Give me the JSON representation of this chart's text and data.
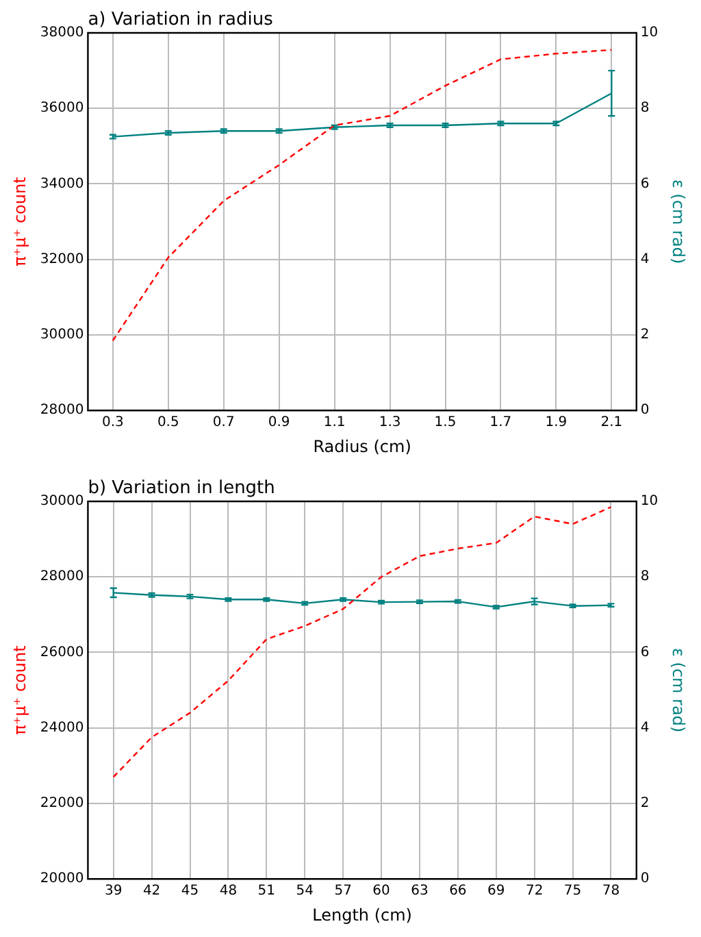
{
  "chart_data": [
    {
      "type": "line",
      "title": "a) Variation in radius",
      "xlabel": "Radius (cm)",
      "ylabel": "π⁺μ⁺ count",
      "y2label": "ε (cm rad)",
      "x": [
        0.3,
        0.5,
        0.7,
        0.9,
        1.1,
        1.3,
        1.5,
        1.7,
        1.9,
        2.1
      ],
      "xlim": [
        0.21,
        2.19
      ],
      "xticks": [
        0.3,
        0.5,
        0.7,
        0.9,
        1.1,
        1.3,
        1.5,
        1.7,
        1.9,
        2.1
      ],
      "ylim": [
        28000,
        38000
      ],
      "yticks": [
        28000,
        30000,
        32000,
        34000,
        36000,
        38000
      ],
      "y2lim": [
        0,
        10
      ],
      "y2ticks": [
        0,
        2,
        4,
        6,
        8,
        10
      ],
      "grid": true,
      "legend": false,
      "series": [
        {
          "color": "#ff0000",
          "line_style": "dashed",
          "values": [
            29850,
            32050,
            33550,
            34500,
            35550,
            35800,
            36600,
            37300,
            37450,
            37550
          ]
        },
        {
          "color": "#008080",
          "line_style": "solid",
          "axis": "y2",
          "values": [
            7.25,
            7.35,
            7.4,
            7.4,
            7.5,
            7.55,
            7.55,
            7.6,
            7.6,
            8.4
          ],
          "errors": [
            0.05,
            0.05,
            0.05,
            0.05,
            0.05,
            0.05,
            0.05,
            0.05,
            0.05,
            0.6
          ]
        }
      ]
    },
    {
      "type": "line",
      "title": "b) Variation in length",
      "xlabel": "Length (cm)",
      "ylabel": "π⁺μ⁺ count",
      "y2label": "ε (cm rad)",
      "x": [
        39,
        42,
        45,
        48,
        51,
        54,
        57,
        60,
        63,
        66,
        69,
        72,
        75,
        78
      ],
      "xlim": [
        37,
        80
      ],
      "xticks": [
        39,
        42,
        45,
        48,
        51,
        54,
        57,
        60,
        63,
        66,
        69,
        72,
        75,
        78
      ],
      "ylim": [
        20000,
        30000
      ],
      "yticks": [
        20000,
        22000,
        24000,
        26000,
        28000,
        30000
      ],
      "y2lim": [
        0,
        10
      ],
      "y2ticks": [
        0,
        2,
        4,
        6,
        8,
        10
      ],
      "grid": true,
      "legend": false,
      "series": [
        {
          "color": "#ff0000",
          "line_style": "dashed",
          "values": [
            22700,
            23750,
            24400,
            25250,
            26350,
            26700,
            27150,
            28000,
            28550,
            28750,
            28900,
            29600,
            29400,
            29850
          ]
        },
        {
          "color": "#008080",
          "line_style": "solid",
          "axis": "y2",
          "values": [
            7.58,
            7.52,
            7.48,
            7.4,
            7.4,
            7.3,
            7.4,
            7.33,
            7.34,
            7.35,
            7.2,
            7.35,
            7.23,
            7.25
          ],
          "errors": [
            0.12,
            0.05,
            0.05,
            0.04,
            0.04,
            0.04,
            0.04,
            0.04,
            0.04,
            0.04,
            0.04,
            0.08,
            0.04,
            0.04
          ]
        }
      ]
    }
  ]
}
